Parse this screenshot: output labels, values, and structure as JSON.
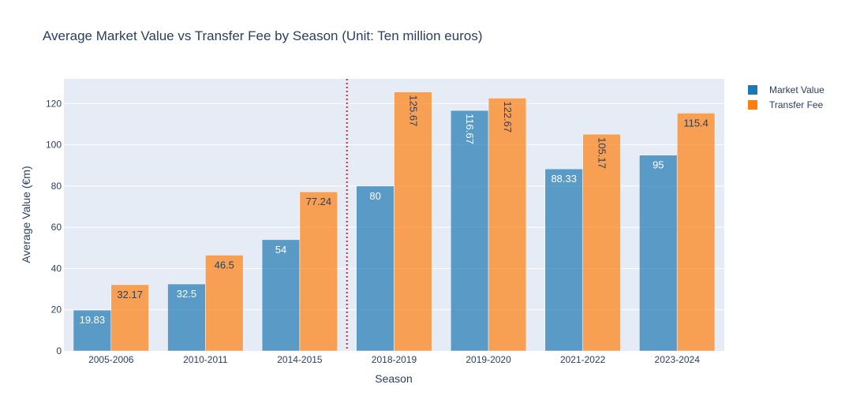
{
  "chart_data": {
    "type": "bar",
    "title": "Average Market Value vs Transfer Fee by Season (Unit: Ten million euros)",
    "xlabel": "Season",
    "ylabel": "Average Value (€m)",
    "categories": [
      "2005-2006",
      "2010-2011",
      "2014-2015",
      "2018-2019",
      "2019-2020",
      "2021-2022",
      "2023-2024"
    ],
    "series": [
      {
        "name": "Market Value",
        "color": "#1f77b4",
        "values": [
          19.83,
          32.5,
          54,
          80,
          116.67,
          88.33,
          95
        ]
      },
      {
        "name": "Transfer Fee",
        "color": "#ff7f0e",
        "values": [
          32.17,
          46.5,
          77.24,
          125.67,
          122.67,
          105.17,
          115.4
        ]
      }
    ],
    "ylim": [
      0,
      132
    ],
    "yticks": [
      0,
      20,
      40,
      60,
      80,
      100,
      120
    ],
    "grid": true,
    "legend_position": "top-right",
    "reference_line": {
      "between": [
        "2014-2015",
        "2018-2019"
      ],
      "style": "dotted",
      "color": "#d62728"
    },
    "plot_background": "#e5ecf6",
    "bar_opacity": 0.7
  }
}
